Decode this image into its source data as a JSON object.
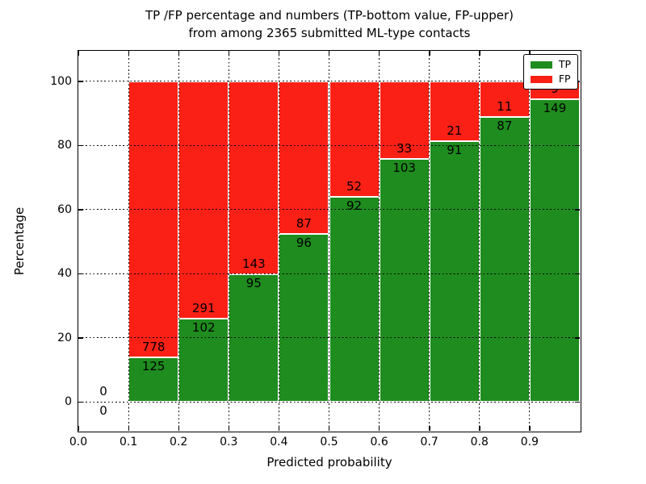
{
  "chart_data": {
    "type": "bar",
    "stacked": true,
    "title_line1": "TP /FP percentage and numbers (TP-bottom value, FP-upper)",
    "title_line2": "from among 2365 submitted ML-type contacts",
    "total_contacts": 2365,
    "xlabel": "Predicted probability",
    "ylabel": "Percentage",
    "xlim": [
      0.0,
      1.0
    ],
    "ylim": [
      -9,
      109.5
    ],
    "x_ticks": [
      0.0,
      0.1,
      0.2,
      0.3,
      0.4,
      0.5,
      0.6,
      0.7,
      0.8,
      0.9
    ],
    "x_tick_labels": [
      "0.0",
      "0.1",
      "0.2",
      "0.3",
      "0.4",
      "0.5",
      "0.6",
      "0.7",
      "0.8",
      "0.9"
    ],
    "y_ticks": [
      0,
      20,
      40,
      60,
      80,
      100
    ],
    "y_tick_labels": [
      "0",
      "20",
      "40",
      "60",
      "80",
      "100"
    ],
    "grid": true,
    "grid_style": "dotted",
    "bin_width": 0.1,
    "colors": {
      "tp": "#1e8c1e",
      "fp": "#fb2015",
      "label_text": "#000000"
    },
    "legend": {
      "position": "upper right",
      "entries": [
        {
          "label": "TP",
          "color": "#1e8c1e"
        },
        {
          "label": "FP",
          "color": "#fb2015"
        }
      ]
    },
    "bins": [
      {
        "range": "0.0-0.1",
        "x_start": 0.0,
        "tp": 0,
        "fp": 0,
        "tp_pct": 0.0,
        "fp_pct": 0.0
      },
      {
        "range": "0.1-0.2",
        "x_start": 0.1,
        "tp": 125,
        "fp": 778,
        "tp_pct": 13.84,
        "fp_pct": 86.16
      },
      {
        "range": "0.2-0.3",
        "x_start": 0.2,
        "tp": 102,
        "fp": 291,
        "tp_pct": 25.95,
        "fp_pct": 74.05
      },
      {
        "range": "0.3-0.4",
        "x_start": 0.3,
        "tp": 95,
        "fp": 143,
        "tp_pct": 39.92,
        "fp_pct": 60.08
      },
      {
        "range": "0.4-0.5",
        "x_start": 0.4,
        "tp": 96,
        "fp": 87,
        "tp_pct": 52.46,
        "fp_pct": 47.54
      },
      {
        "range": "0.5-0.6",
        "x_start": 0.5,
        "tp": 92,
        "fp": 52,
        "tp_pct": 63.89,
        "fp_pct": 36.11
      },
      {
        "range": "0.6-0.7",
        "x_start": 0.6,
        "tp": 103,
        "fp": 33,
        "tp_pct": 75.74,
        "fp_pct": 24.26
      },
      {
        "range": "0.7-0.8",
        "x_start": 0.7,
        "tp": 91,
        "fp": 21,
        "tp_pct": 81.25,
        "fp_pct": 18.75
      },
      {
        "range": "0.8-0.9",
        "x_start": 0.8,
        "tp": 87,
        "fp": 11,
        "tp_pct": 88.78,
        "fp_pct": 11.22
      },
      {
        "range": "0.9-1.0",
        "x_start": 0.9,
        "tp": 149,
        "fp": 9,
        "tp_pct": 94.3,
        "fp_pct": 5.7,
        "fp_label_occluded_by_legend": true
      }
    ]
  }
}
